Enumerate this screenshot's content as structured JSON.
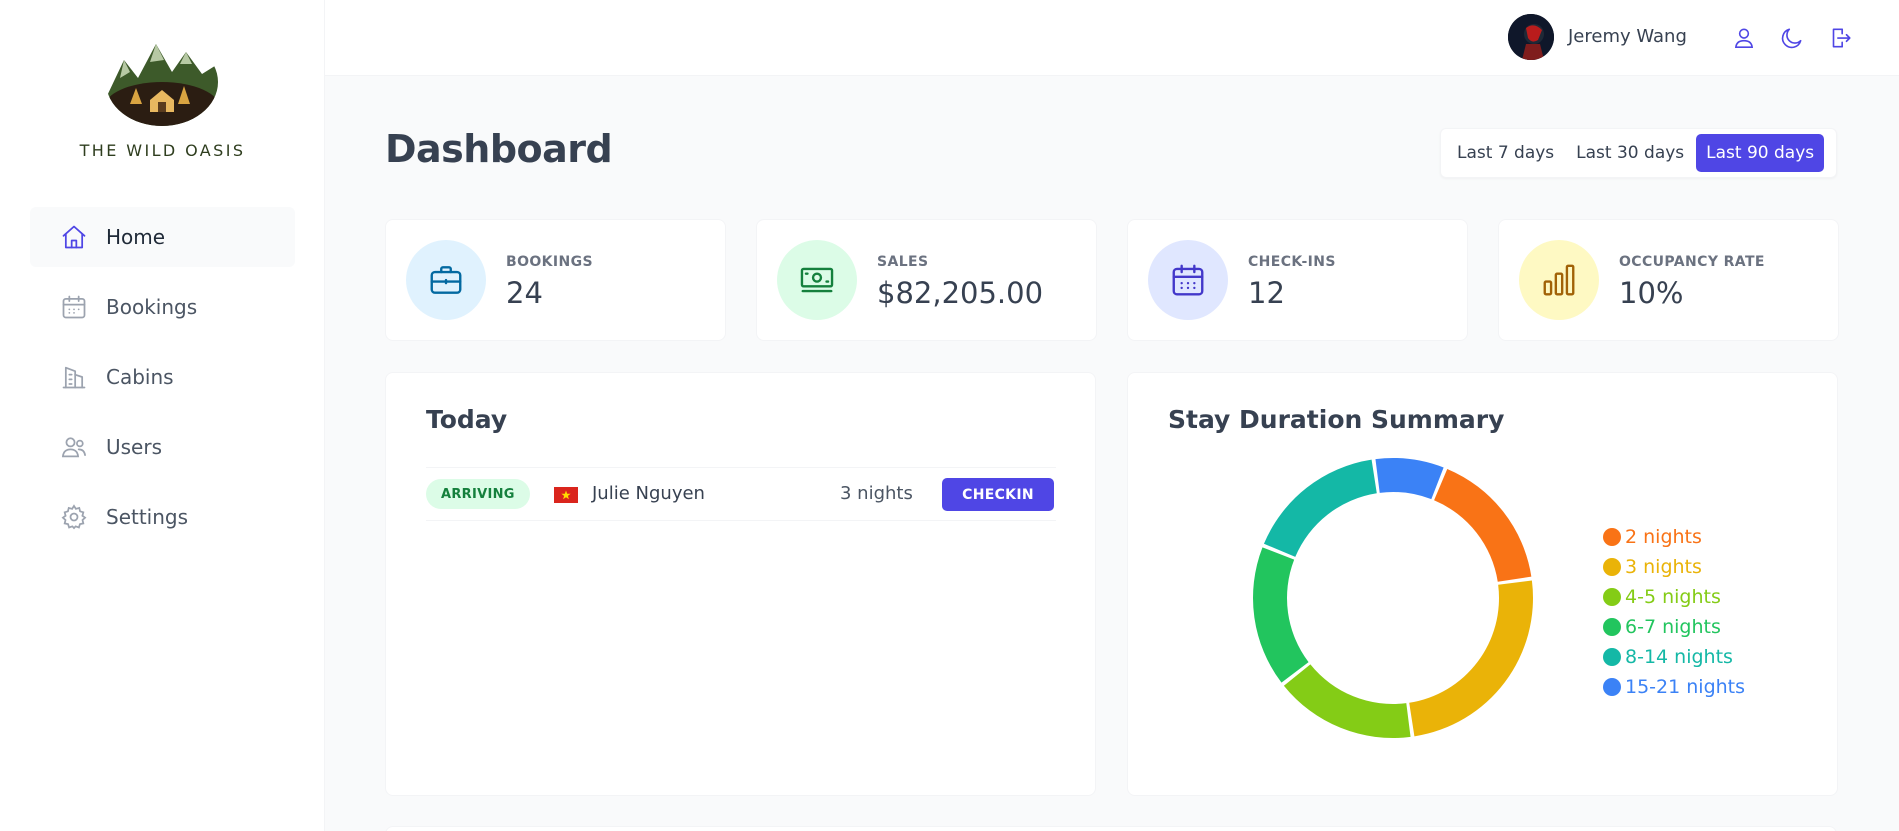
{
  "brand": {
    "name": "THE WILD OASIS"
  },
  "sidebar": {
    "items": [
      {
        "label": "Home",
        "icon": "home-icon",
        "active": true
      },
      {
        "label": "Bookings",
        "icon": "calendar-icon",
        "active": false
      },
      {
        "label": "Cabins",
        "icon": "building-icon",
        "active": false
      },
      {
        "label": "Users",
        "icon": "users-icon",
        "active": false
      },
      {
        "label": "Settings",
        "icon": "gear-icon",
        "active": false
      }
    ]
  },
  "header": {
    "user_name": "Jeremy Wang",
    "buttons": [
      "user-icon",
      "moon-icon",
      "logout-icon"
    ]
  },
  "page": {
    "title": "Dashboard"
  },
  "filter": {
    "options": [
      "Last 7 days",
      "Last 30 days",
      "Last 90 days"
    ],
    "selected": "Last 90 days"
  },
  "stats": [
    {
      "label": "BOOKINGS",
      "value": "24",
      "icon": "briefcase-icon",
      "bg": "#e0f2fe",
      "fg": "#0369a1"
    },
    {
      "label": "SALES",
      "value": "$82,205.00",
      "icon": "banknotes-icon",
      "bg": "#dcfce7",
      "fg": "#15803d"
    },
    {
      "label": "CHECK-INS",
      "value": "12",
      "icon": "calendar-days-icon",
      "bg": "#e0e7ff",
      "fg": "#4338ca"
    },
    {
      "label": "OCCUPANCY RATE",
      "value": "10%",
      "icon": "chart-bar-icon",
      "bg": "#fef9c3",
      "fg": "#a16207"
    }
  ],
  "today": {
    "title": "Today",
    "activities": [
      {
        "status": "ARRIVING",
        "guest": "Julie Nguyen",
        "nights": "3 nights",
        "action": "CHECKIN"
      }
    ]
  },
  "stay_summary": {
    "title": "Stay Duration Summary"
  },
  "chart_data": {
    "type": "pie",
    "variant": "donut",
    "title": "Stay Duration Summary",
    "legend_position": "right",
    "categories": [
      "2 nights",
      "3 nights",
      "4-5 nights",
      "6-7 nights",
      "8-14 nights",
      "15-21 nights"
    ],
    "values": [
      4,
      6,
      4,
      4,
      4,
      2
    ],
    "colors": [
      "#f97316",
      "#eab308",
      "#84cc16",
      "#22c55e",
      "#14b8a6",
      "#3b82f6"
    ]
  }
}
